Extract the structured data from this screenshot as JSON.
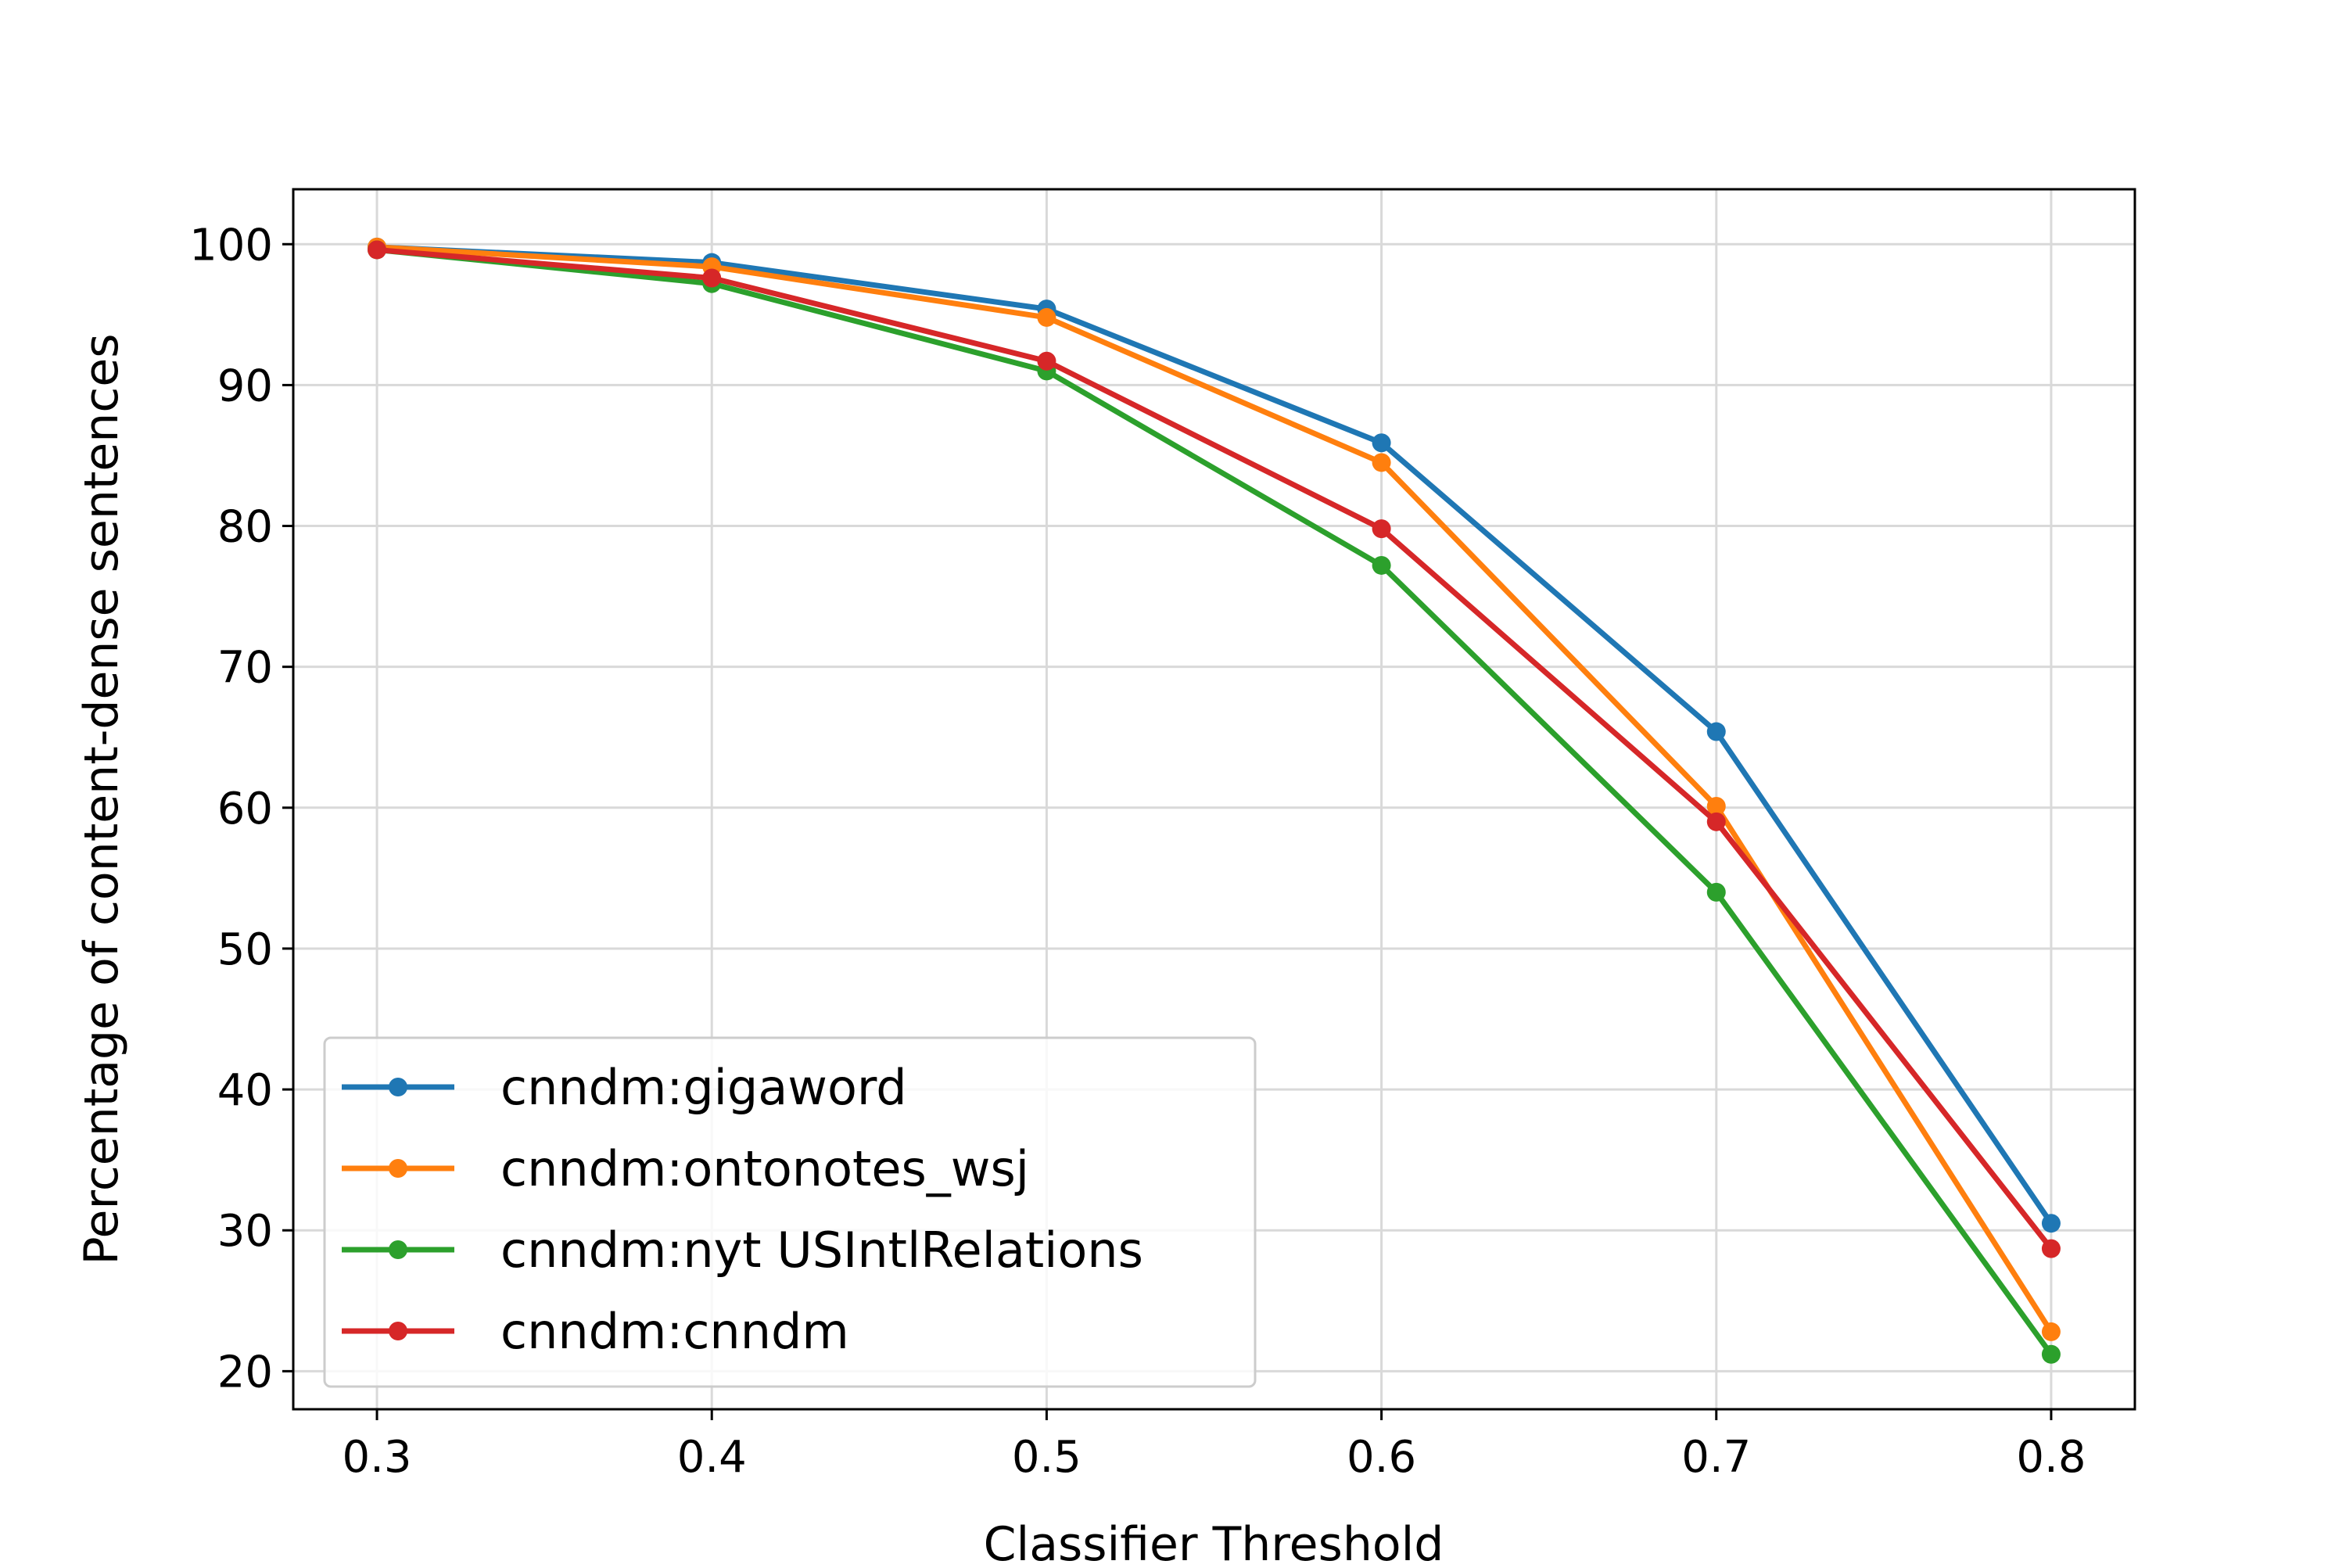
{
  "chart_data": {
    "type": "line",
    "xlabel": "Classifier Threshold",
    "ylabel": "Percentage of content-dense sentences",
    "x": [
      0.3,
      0.4,
      0.5,
      0.6,
      0.7,
      0.8
    ],
    "x_ticks": [
      "0.3",
      "0.4",
      "0.5",
      "0.6",
      "0.7",
      "0.8"
    ],
    "y_ticks": [
      "20",
      "30",
      "40",
      "50",
      "60",
      "70",
      "80",
      "90",
      "100"
    ],
    "xlim": [
      0.275,
      0.825
    ],
    "ylim": [
      17.3,
      103.9
    ],
    "grid": true,
    "legend_position": "lower-left",
    "series": [
      {
        "name": "cnndm:gigaword",
        "color": "#1f77b4",
        "values": [
          99.8,
          98.7,
          95.4,
          85.9,
          65.4,
          30.5
        ]
      },
      {
        "name": "cnndm:ontonotes_wsj",
        "color": "#ff7f0e",
        "values": [
          99.8,
          98.4,
          94.8,
          84.5,
          60.1,
          22.8
        ]
      },
      {
        "name": "cnndm:nyt USIntlRelations",
        "color": "#2ca02c",
        "values": [
          99.6,
          97.2,
          91.0,
          77.2,
          54.0,
          21.2
        ]
      },
      {
        "name": "cnndm:cnndm",
        "color": "#d62728",
        "values": [
          99.6,
          97.6,
          91.7,
          79.8,
          59.0,
          28.7
        ]
      }
    ]
  }
}
